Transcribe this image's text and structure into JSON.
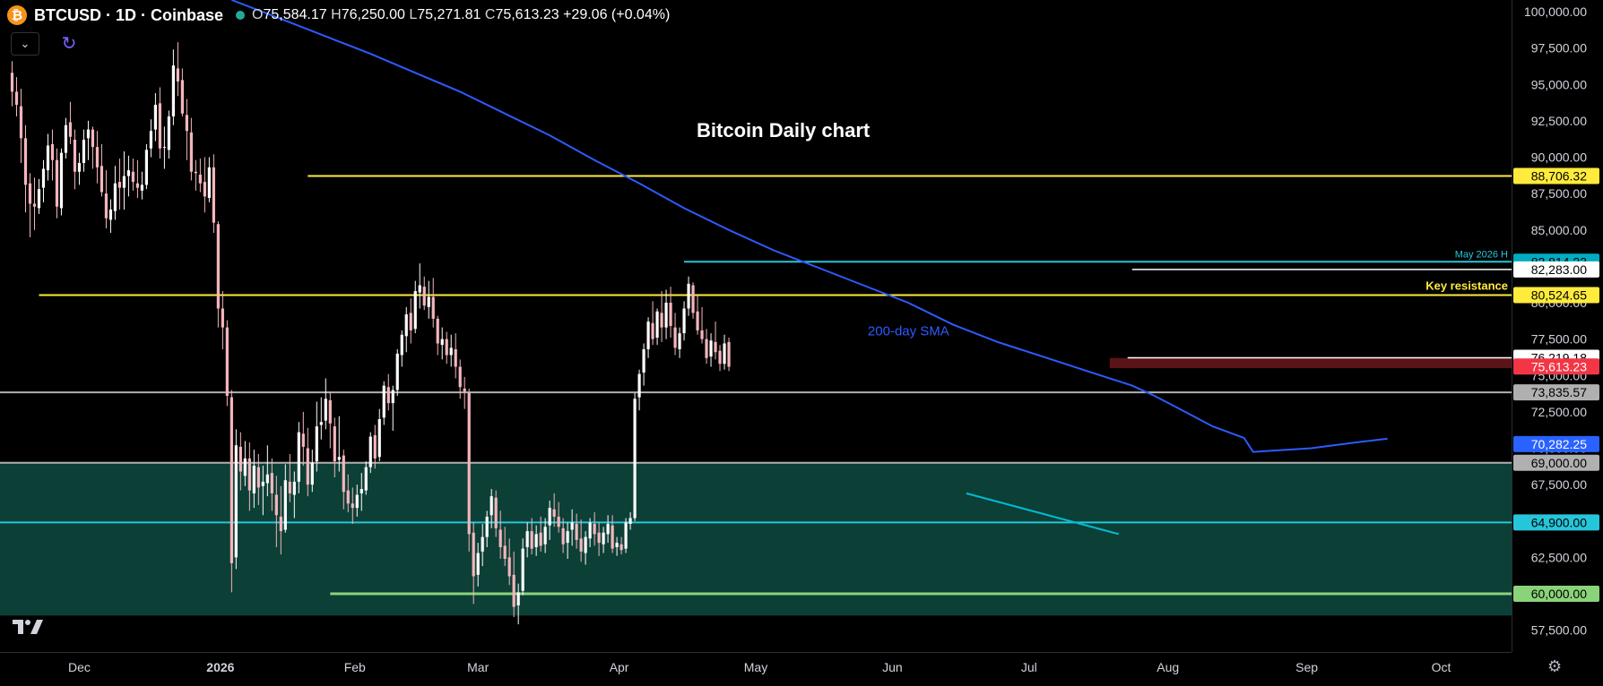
{
  "header": {
    "coin_icon": "₿",
    "symbol": "BTCUSD · 1D · Coinbase",
    "ohlc": {
      "o": "75,584.17",
      "h": "76,250.00",
      "l": "75,271.81",
      "c": "75,613.23",
      "change": "+29.06 (+0.04%)"
    },
    "collapse_icon": "chevron-down-icon",
    "refresh_icon": "refresh-icon",
    "logo": "TV"
  },
  "colors": {
    "background": "#000000",
    "up": "#ffffff",
    "down": "#f5b6bc",
    "sma": "#2d5bff",
    "yellow": "#ffeb3b",
    "cyan": "#26c6da",
    "gray": "#b0b0b0",
    "green_line": "#8bd37a",
    "zone": "#0c3f36",
    "red_zone": "#5a1417",
    "trend": "#00bcd4"
  },
  "chart_data": {
    "type": "candlestick",
    "title": "Bitcoin Daily chart",
    "x_tick_labels": [
      "Dec",
      "2026",
      "Feb",
      "Mar",
      "Apr",
      "May",
      "Jun",
      "Jul",
      "Aug",
      "Sep",
      "Oct"
    ],
    "y_tick_labels": [
      "100,000.00",
      "97,500.00",
      "95,000.00",
      "92,500.00",
      "90,000.00",
      "87,500.00",
      "85,000.00",
      "82,500.00",
      "80,000.00",
      "77,500.00",
      "75,000.00",
      "72,500.00",
      "70,000.00",
      "67,500.00",
      "65,000.00",
      "62,500.00",
      "60,000.00",
      "57,500.00"
    ],
    "ylim": [
      56000,
      100800
    ],
    "series": [
      {
        "name": "200-day SMA",
        "type": "line",
        "points": [
          [
            49,
            100800
          ],
          [
            60,
            99500
          ],
          [
            70,
            98300
          ],
          [
            80,
            97100
          ],
          [
            90,
            95800
          ],
          [
            100,
            94500
          ],
          [
            110,
            93000
          ],
          [
            120,
            91500
          ],
          [
            130,
            89800
          ],
          [
            140,
            88200
          ],
          [
            150,
            86500
          ],
          [
            160,
            85000
          ],
          [
            170,
            83600
          ],
          [
            180,
            82400
          ],
          [
            190,
            81200
          ],
          [
            200,
            80000
          ],
          [
            210,
            78500
          ],
          [
            220,
            77300
          ],
          [
            225,
            76800
          ],
          [
            230,
            76300
          ],
          [
            240,
            75300
          ],
          [
            250,
            74300
          ],
          [
            255,
            73600
          ],
          [
            260,
            72800
          ],
          [
            268,
            71500
          ],
          [
            275,
            70700
          ],
          [
            277,
            69750
          ],
          [
            290,
            70000
          ],
          [
            300,
            70400
          ],
          [
            307,
            70650
          ]
        ]
      }
    ],
    "candles_ohlc": [
      [
        95800,
        96600,
        93500,
        94500
      ],
      [
        94500,
        95500,
        92800,
        93600
      ],
      [
        93500,
        94700,
        89600,
        91300
      ],
      [
        91300,
        92200,
        86200,
        88100
      ],
      [
        88200,
        88900,
        84500,
        86800
      ],
      [
        86800,
        88600,
        85000,
        86600
      ],
      [
        86500,
        88500,
        86100,
        87800
      ],
      [
        87900,
        89800,
        86900,
        89200
      ],
      [
        89100,
        91600,
        88400,
        90800
      ],
      [
        90900,
        91900,
        88400,
        89800
      ],
      [
        89800,
        90600,
        85800,
        86600
      ],
      [
        86500,
        90600,
        86000,
        90300
      ],
      [
        90300,
        92700,
        89900,
        92200
      ],
      [
        92400,
        93800,
        90900,
        91400
      ],
      [
        91200,
        91900,
        87800,
        89000
      ],
      [
        89000,
        90300,
        88100,
        89600
      ],
      [
        89600,
        91900,
        89000,
        91200
      ],
      [
        91300,
        92500,
        89800,
        91900
      ],
      [
        91900,
        92100,
        89200,
        90700
      ],
      [
        90700,
        91800,
        88200,
        89300
      ],
      [
        89400,
        90900,
        87300,
        87600
      ],
      [
        87500,
        89100,
        85100,
        85800
      ],
      [
        85700,
        87100,
        84800,
        86400
      ],
      [
        86300,
        89400,
        85700,
        88200
      ],
      [
        88300,
        89900,
        86400,
        87900
      ],
      [
        87900,
        90400,
        86400,
        88700
      ],
      [
        88700,
        90100,
        87300,
        89100
      ],
      [
        89000,
        89900,
        87700,
        88300
      ],
      [
        88200,
        89800,
        87200,
        87900
      ],
      [
        87700,
        89000,
        87100,
        88100
      ],
      [
        88100,
        90900,
        87800,
        90500
      ],
      [
        90600,
        92600,
        90000,
        91800
      ],
      [
        91900,
        94400,
        91100,
        93600
      ],
      [
        93700,
        94800,
        89900,
        90600
      ],
      [
        90700,
        92100,
        89200,
        90700
      ],
      [
        90500,
        93200,
        89900,
        92800
      ],
      [
        92800,
        97400,
        92200,
        96300
      ],
      [
        96100,
        97900,
        94200,
        95200
      ],
      [
        95300,
        96100,
        92800,
        93000
      ],
      [
        92900,
        94000,
        89800,
        91800
      ],
      [
        91700,
        92700,
        88400,
        89000
      ],
      [
        89000,
        89800,
        87700,
        88900
      ],
      [
        88800,
        89900,
        87600,
        88200
      ],
      [
        88300,
        90000,
        86200,
        87300
      ],
      [
        87200,
        90000,
        86900,
        89300
      ],
      [
        89300,
        90200,
        84800,
        85500
      ],
      [
        85400,
        85600,
        78300,
        79600
      ],
      [
        79600,
        80800,
        76800,
        78300
      ],
      [
        78300,
        78800,
        72900,
        73600
      ],
      [
        73500,
        74000,
        60100,
        62100
      ],
      [
        62500,
        71300,
        61700,
        70200
      ],
      [
        70100,
        71100,
        67100,
        68400
      ],
      [
        68100,
        70500,
        67400,
        69300
      ],
      [
        69300,
        70400,
        65700,
        67100
      ],
      [
        66900,
        69900,
        65900,
        68800
      ],
      [
        68700,
        69600,
        66100,
        67300
      ],
      [
        67400,
        68800,
        65400,
        67700
      ],
      [
        67600,
        70200,
        66700,
        68200
      ],
      [
        68300,
        69300,
        65700,
        66900
      ],
      [
        66800,
        68100,
        63200,
        65400
      ],
      [
        65300,
        67400,
        62700,
        64300
      ],
      [
        64400,
        68900,
        64200,
        67800
      ],
      [
        67700,
        69600,
        66300,
        66900
      ],
      [
        66800,
        68400,
        65200,
        67700
      ],
      [
        67700,
        71800,
        66900,
        71100
      ],
      [
        71000,
        72500,
        68800,
        70100
      ],
      [
        70000,
        71400,
        66700,
        67500
      ],
      [
        67500,
        69900,
        67000,
        69000
      ],
      [
        69100,
        73200,
        68400,
        71500
      ],
      [
        71600,
        73500,
        70600,
        71800
      ],
      [
        71900,
        74800,
        71300,
        73400
      ],
      [
        73300,
        73900,
        70000,
        71700
      ],
      [
        71500,
        72100,
        68000,
        69100
      ],
      [
        69200,
        72200,
        68400,
        69400
      ],
      [
        69500,
        69900,
        65800,
        67000
      ],
      [
        67100,
        68200,
        65600,
        66200
      ],
      [
        66200,
        67300,
        64800,
        65900
      ],
      [
        65900,
        67500,
        65300,
        66800
      ],
      [
        66900,
        68300,
        65700,
        67200
      ],
      [
        67100,
        69100,
        66800,
        68700
      ],
      [
        68700,
        71100,
        68300,
        70800
      ],
      [
        70900,
        71600,
        68600,
        69300
      ],
      [
        69400,
        72700,
        69100,
        72000
      ],
      [
        72100,
        74600,
        71600,
        74300
      ],
      [
        74200,
        75100,
        72600,
        73100
      ],
      [
        73100,
        74300,
        71200,
        74000
      ],
      [
        74000,
        76800,
        73600,
        76500
      ],
      [
        76400,
        78100,
        75600,
        77800
      ],
      [
        77700,
        79700,
        76600,
        79200
      ],
      [
        79300,
        80300,
        77200,
        78100
      ],
      [
        78200,
        81500,
        77900,
        80800
      ],
      [
        80700,
        82700,
        79600,
        81200
      ],
      [
        81100,
        81800,
        79500,
        79800
      ],
      [
        79700,
        81500,
        78900,
        80400
      ],
      [
        80400,
        81700,
        78300,
        78900
      ],
      [
        78900,
        79100,
        76400,
        77200
      ],
      [
        77100,
        78300,
        76100,
        77500
      ],
      [
        77500,
        78000,
        75800,
        76400
      ],
      [
        76400,
        77800,
        75600,
        76900
      ],
      [
        76800,
        77900,
        74800,
        75600
      ],
      [
        75600,
        76100,
        73400,
        74200
      ],
      [
        74100,
        74900,
        72700,
        73900
      ],
      [
        73800,
        74100,
        62900,
        64100
      ],
      [
        64200,
        64900,
        59300,
        61200
      ],
      [
        61300,
        63500,
        60500,
        62800
      ],
      [
        62900,
        64800,
        61900,
        63900
      ],
      [
        63900,
        65700,
        63200,
        65300
      ],
      [
        65400,
        67200,
        64500,
        66700
      ],
      [
        66600,
        67100,
        63900,
        64500
      ],
      [
        64400,
        65700,
        62400,
        63200
      ],
      [
        63300,
        64600,
        61900,
        62400
      ],
      [
        62500,
        63800,
        60600,
        61200
      ],
      [
        61300,
        62900,
        58400,
        59100
      ],
      [
        59200,
        60700,
        57900,
        60100
      ],
      [
        60200,
        63800,
        59900,
        63100
      ],
      [
        63200,
        64900,
        62500,
        64300
      ],
      [
        64300,
        65200,
        62700,
        63100
      ],
      [
        63200,
        64700,
        62600,
        64100
      ],
      [
        64200,
        65300,
        62900,
        63300
      ],
      [
        63400,
        65200,
        62800,
        64600
      ],
      [
        64700,
        66400,
        63700,
        65900
      ],
      [
        65800,
        66900,
        64600,
        65300
      ],
      [
        65300,
        66300,
        64200,
        64600
      ],
      [
        64500,
        65200,
        62800,
        63400
      ],
      [
        63500,
        64900,
        62400,
        64300
      ],
      [
        64400,
        65800,
        63300,
        64900
      ],
      [
        64800,
        65500,
        63100,
        63700
      ],
      [
        63800,
        65100,
        62200,
        62900
      ],
      [
        62800,
        64300,
        62000,
        63900
      ],
      [
        63800,
        65200,
        63200,
        64900
      ],
      [
        64800,
        65600,
        63300,
        64100
      ],
      [
        64200,
        64900,
        62600,
        63500
      ],
      [
        63400,
        64600,
        62800,
        64200
      ],
      [
        64100,
        65400,
        63500,
        64800
      ],
      [
        64700,
        65400,
        62800,
        63100
      ],
      [
        63200,
        63900,
        62600,
        63500
      ],
      [
        63400,
        63900,
        62700,
        63000
      ],
      [
        63100,
        65200,
        62800,
        64900
      ],
      [
        64800,
        65600,
        64400,
        65200
      ],
      [
        65200,
        73800,
        65000,
        73400
      ],
      [
        73500,
        75400,
        72600,
        75100
      ],
      [
        75200,
        77200,
        74300,
        76800
      ],
      [
        76800,
        79000,
        76200,
        78700
      ],
      [
        78600,
        80100,
        77100,
        77500
      ],
      [
        77600,
        79600,
        77100,
        79400
      ],
      [
        79300,
        80800,
        77300,
        78300
      ],
      [
        78300,
        80900,
        77500,
        80000
      ],
      [
        80000,
        81100,
        77600,
        78400
      ],
      [
        78300,
        79300,
        76400,
        76900
      ],
      [
        76800,
        78300,
        76200,
        77900
      ],
      [
        77900,
        80100,
        77400,
        79600
      ],
      [
        79600,
        81800,
        79100,
        81300
      ],
      [
        81200,
        81400,
        78900,
        79300
      ],
      [
        79400,
        80500,
        77800,
        78100
      ],
      [
        78100,
        79700,
        77200,
        77500
      ],
      [
        77500,
        78200,
        75800,
        76200
      ],
      [
        76300,
        77900,
        75600,
        77400
      ],
      [
        77300,
        78700,
        76100,
        76600
      ],
      [
        76700,
        77100,
        75300,
        75800
      ],
      [
        75800,
        77800,
        75400,
        77200
      ],
      [
        77300,
        77600,
        75300,
        75600
      ]
    ],
    "annotations": [
      "Bitcoin Daily chart",
      "200-day SMA",
      "Key resistance",
      "May 2026 H"
    ],
    "level_labels": [
      {
        "label": "88,706.32",
        "value": 88706.32
      },
      {
        "label": "82,814.23",
        "value": 82814.23
      },
      {
        "label": "82,283.00",
        "value": 82283.0
      },
      {
        "label": "80,524.65",
        "value": 80524.65
      },
      {
        "label": "76,219.18",
        "value": 76219.18
      },
      {
        "label": "75,613.23",
        "value": 75613.23
      },
      {
        "label": "73,835.57",
        "value": 73835.57
      },
      {
        "label": "70,282.25",
        "value": 70282.25
      },
      {
        "label": "69,000.00",
        "value": 69000.0
      },
      {
        "label": "64,900.00",
        "value": 64900.0
      },
      {
        "label": "60,000.00",
        "value": 60000.0
      }
    ],
    "grid": false
  }
}
